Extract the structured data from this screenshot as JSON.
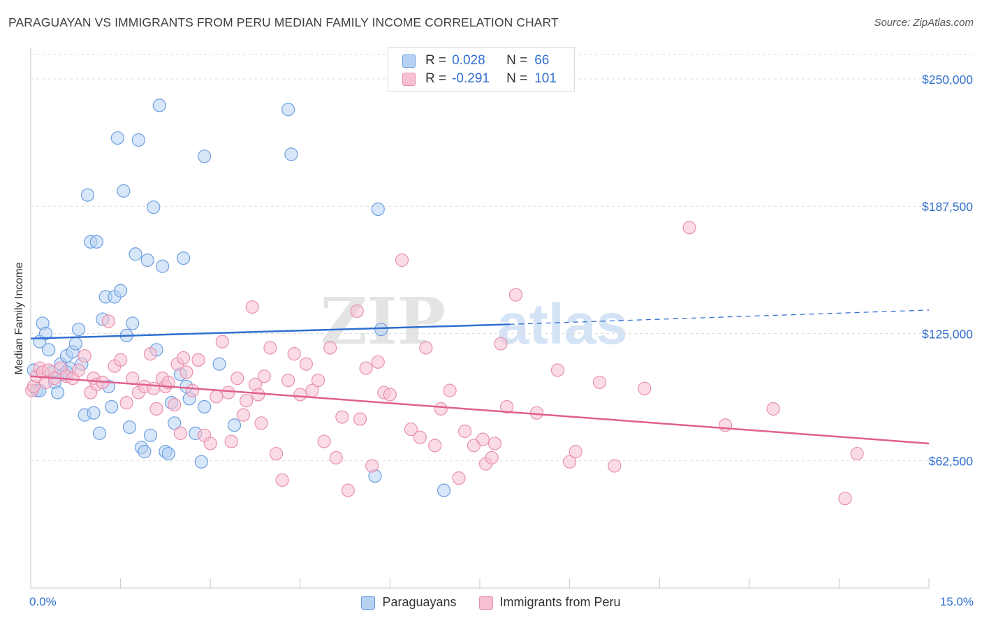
{
  "title": "PARAGUAYAN VS IMMIGRANTS FROM PERU MEDIAN FAMILY INCOME CORRELATION CHART",
  "source": "Source: ZipAtlas.com",
  "watermark": {
    "zip": "ZIP",
    "atlas": "atlas"
  },
  "legend_top": [
    {
      "r_label": "R =",
      "r_value": "0.028",
      "n_label": "N =",
      "n_value": "66"
    },
    {
      "r_label": "R =",
      "r_value": "-0.291",
      "n_label": "N =",
      "n_value": "101"
    }
  ],
  "colors": {
    "blue_fill": "#b7d1f2",
    "blue_stroke": "#6d9fe0",
    "blue_line": "#2f6fcf",
    "pink_fill": "#f7c0d2",
    "pink_stroke": "#e890ae",
    "pink_line": "#e0608e",
    "tick_text": "#2f6fcf",
    "grid": "#dddddd"
  },
  "chart_data": {
    "type": "scatter",
    "ylabel": "Median Family Income",
    "xlim": [
      0,
      15
    ],
    "ylim": [
      0,
      262000
    ],
    "x_tick_labels": [
      "0.0%",
      "15.0%"
    ],
    "y_ticks": [
      62500,
      125000,
      187500,
      250000
    ],
    "y_tick_labels": [
      "$62,500",
      "$125,000",
      "$187,500",
      "$250,000"
    ],
    "grid": true,
    "legend_position": "bottom",
    "series": [
      {
        "name": "Paraguayans",
        "trend": {
          "x0": 0,
          "y0": 122500,
          "x1": 8.0,
          "y1": 129500,
          "x_dash_end": 15,
          "y_dash_end": 136500
        },
        "points": [
          [
            0.05,
            107000
          ],
          [
            0.1,
            97000
          ],
          [
            0.15,
            121000
          ],
          [
            0.2,
            130000
          ],
          [
            0.25,
            125000
          ],
          [
            0.3,
            117000
          ],
          [
            0.35,
            106000
          ],
          [
            0.4,
            101000
          ],
          [
            0.45,
            96000
          ],
          [
            0.5,
            110000
          ],
          [
            0.55,
            105000
          ],
          [
            0.6,
            114000
          ],
          [
            0.65,
            108000
          ],
          [
            0.7,
            116000
          ],
          [
            0.75,
            120000
          ],
          [
            0.8,
            127000
          ],
          [
            0.85,
            110000
          ],
          [
            0.9,
            85000
          ],
          [
            0.95,
            193000
          ],
          [
            1.0,
            170000
          ],
          [
            1.05,
            86000
          ],
          [
            1.1,
            170000
          ],
          [
            1.15,
            76000
          ],
          [
            1.2,
            132000
          ],
          [
            1.25,
            143000
          ],
          [
            1.3,
            99000
          ],
          [
            1.35,
            89000
          ],
          [
            1.4,
            143000
          ],
          [
            1.45,
            221000
          ],
          [
            1.5,
            146000
          ],
          [
            1.55,
            195000
          ],
          [
            1.6,
            124000
          ],
          [
            1.65,
            79000
          ],
          [
            1.7,
            130000
          ],
          [
            1.75,
            164000
          ],
          [
            1.8,
            220000
          ],
          [
            1.85,
            69000
          ],
          [
            1.9,
            67000
          ],
          [
            1.95,
            161000
          ],
          [
            2.0,
            75000
          ],
          [
            2.05,
            187000
          ],
          [
            2.1,
            117000
          ],
          [
            2.15,
            237000
          ],
          [
            2.2,
            158000
          ],
          [
            2.25,
            67000
          ],
          [
            2.3,
            66000
          ],
          [
            2.35,
            91000
          ],
          [
            2.4,
            81000
          ],
          [
            2.5,
            105000
          ],
          [
            2.55,
            162000
          ],
          [
            2.6,
            99000
          ],
          [
            2.65,
            93000
          ],
          [
            2.75,
            76000
          ],
          [
            2.85,
            62000
          ],
          [
            2.9,
            89000
          ],
          [
            2.9,
            212000
          ],
          [
            3.15,
            110000
          ],
          [
            3.4,
            80000
          ],
          [
            4.3,
            235000
          ],
          [
            4.35,
            213000
          ],
          [
            5.75,
            55000
          ],
          [
            5.8,
            186000
          ],
          [
            5.85,
            127000
          ],
          [
            6.9,
            48000
          ],
          [
            0.15,
            97000
          ],
          [
            0.6,
            106000
          ]
        ]
      },
      {
        "name": "Immigrants from Peru",
        "trend": {
          "x0": 0,
          "y0": 104000,
          "x1": 15,
          "y1": 71000
        },
        "points": [
          [
            0.02,
            97000
          ],
          [
            0.05,
            99000
          ],
          [
            0.1,
            104000
          ],
          [
            0.15,
            108000
          ],
          [
            0.2,
            106000
          ],
          [
            0.25,
            101000
          ],
          [
            0.3,
            107000
          ],
          [
            0.4,
            103000
          ],
          [
            0.5,
            108000
          ],
          [
            0.6,
            104000
          ],
          [
            0.7,
            103000
          ],
          [
            0.8,
            107000
          ],
          [
            0.9,
            114000
          ],
          [
            1.0,
            96000
          ],
          [
            1.05,
            103000
          ],
          [
            1.1,
            100000
          ],
          [
            1.2,
            101000
          ],
          [
            1.3,
            131000
          ],
          [
            1.4,
            109000
          ],
          [
            1.5,
            112000
          ],
          [
            1.6,
            91000
          ],
          [
            1.7,
            103000
          ],
          [
            1.8,
            96000
          ],
          [
            1.9,
            99000
          ],
          [
            2.0,
            115000
          ],
          [
            2.05,
            98000
          ],
          [
            2.1,
            88000
          ],
          [
            2.2,
            103000
          ],
          [
            2.25,
            99000
          ],
          [
            2.3,
            101000
          ],
          [
            2.4,
            90000
          ],
          [
            2.45,
            110000
          ],
          [
            2.5,
            76000
          ],
          [
            2.55,
            113000
          ],
          [
            2.6,
            106000
          ],
          [
            2.7,
            97000
          ],
          [
            2.8,
            112000
          ],
          [
            2.9,
            75000
          ],
          [
            3.0,
            71000
          ],
          [
            3.1,
            94000
          ],
          [
            3.2,
            121000
          ],
          [
            3.3,
            96000
          ],
          [
            3.35,
            72000
          ],
          [
            3.45,
            103000
          ],
          [
            3.55,
            85000
          ],
          [
            3.6,
            92000
          ],
          [
            3.7,
            138000
          ],
          [
            3.75,
            100000
          ],
          [
            3.8,
            95000
          ],
          [
            3.85,
            81000
          ],
          [
            3.9,
            104000
          ],
          [
            4.0,
            118000
          ],
          [
            4.1,
            66000
          ],
          [
            4.2,
            53000
          ],
          [
            4.3,
            102000
          ],
          [
            4.4,
            115000
          ],
          [
            4.5,
            95000
          ],
          [
            4.6,
            110000
          ],
          [
            4.7,
            97000
          ],
          [
            4.8,
            102000
          ],
          [
            4.9,
            72000
          ],
          [
            5.0,
            118000
          ],
          [
            5.1,
            64000
          ],
          [
            5.2,
            84000
          ],
          [
            5.3,
            48000
          ],
          [
            5.45,
            136000
          ],
          [
            5.5,
            83000
          ],
          [
            5.6,
            108000
          ],
          [
            5.7,
            60000
          ],
          [
            5.8,
            111000
          ],
          [
            5.9,
            96000
          ],
          [
            6.0,
            95000
          ],
          [
            6.2,
            161000
          ],
          [
            6.35,
            78000
          ],
          [
            6.5,
            74000
          ],
          [
            6.6,
            118000
          ],
          [
            6.75,
            70000
          ],
          [
            6.85,
            88000
          ],
          [
            7.0,
            97000
          ],
          [
            7.15,
            54000
          ],
          [
            7.25,
            77000
          ],
          [
            7.4,
            70000
          ],
          [
            7.55,
            73000
          ],
          [
            7.6,
            61000
          ],
          [
            7.7,
            64000
          ],
          [
            7.75,
            71000
          ],
          [
            7.85,
            120000
          ],
          [
            7.95,
            89000
          ],
          [
            8.1,
            144000
          ],
          [
            8.45,
            86000
          ],
          [
            8.8,
            107000
          ],
          [
            9.0,
            62000
          ],
          [
            9.1,
            67000
          ],
          [
            9.5,
            101000
          ],
          [
            9.75,
            60000
          ],
          [
            10.25,
            98000
          ],
          [
            11.0,
            177000
          ],
          [
            11.6,
            80000
          ],
          [
            12.4,
            88000
          ],
          [
            13.6,
            44000
          ],
          [
            13.8,
            66000
          ]
        ]
      }
    ]
  }
}
